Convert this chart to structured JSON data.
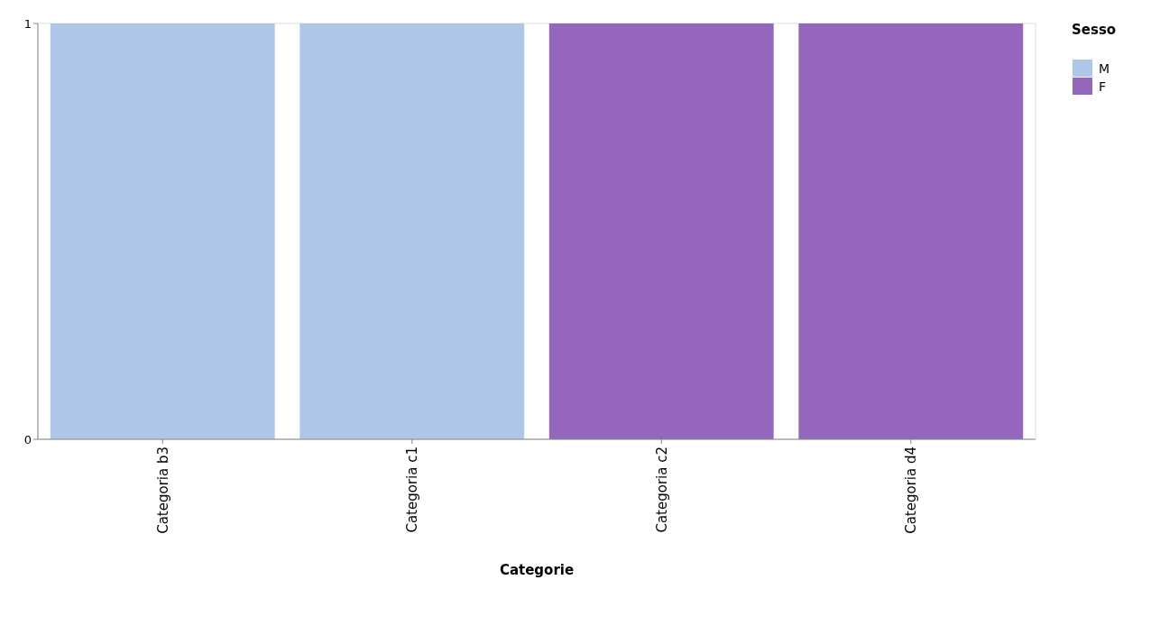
{
  "chart_data": {
    "type": "bar",
    "xlabel": "Categorie",
    "legend_title": "Sesso",
    "legend": "top right",
    "grid": false,
    "categories": [
      "Categoria b3",
      "Categoria c1",
      "Categoria c2",
      "Categoria d4"
    ],
    "series": [
      {
        "name": "M",
        "color": "#aec7e8",
        "values": [
          1,
          1,
          null,
          null
        ]
      },
      {
        "name": "F",
        "color": "#9467bd",
        "values": [
          null,
          null,
          1,
          1
        ]
      }
    ],
    "ylim": [
      0,
      1
    ],
    "yticks": [
      0,
      1
    ]
  }
}
